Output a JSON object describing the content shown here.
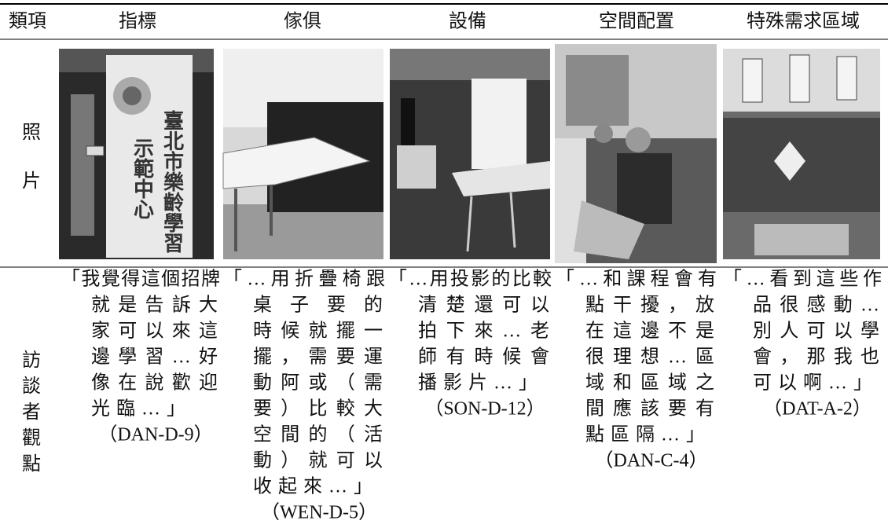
{
  "table": {
    "header": [
      "類項",
      "指標",
      "傢俱",
      "設備",
      "空間配置",
      "特殊需求區域"
    ],
    "rows": [
      {
        "label": "照片",
        "photos": [
          {
            "sign": [
              "臺北市樂齡學習",
              "示範中心"
            ]
          }
        ]
      },
      {
        "label": "訪談者觀點",
        "cells": [
          [
            "「我覺得這個招牌",
            "就是告訴大",
            "家可以來這",
            "邊學習…好",
            "像在說歡迎",
            "光臨…」",
            "（DAN-D-9）"
          ],
          [
            "「…用折疊椅跟",
            "桌子要的",
            "時候就擺一",
            "擺，需要運",
            "動阿或（需",
            "要）比較大",
            "空間的（活",
            "動）就可以",
            "收起來…」",
            "（WEN-D-5）"
          ],
          [
            "「…用投影的比較",
            "清楚還可以",
            "拍下來…老",
            "師有時候會",
            "播影片…」",
            "（SON-D-12）"
          ],
          [
            "「…和課程會有",
            "點干擾，放",
            "在這邊不是",
            "很理想…區",
            "域和區域之",
            "間應該要有",
            "點區隔…」",
            "（DAN-C-4）"
          ],
          [
            "「…看到這些作",
            "品很感動…",
            "別人可以學",
            "會，那我也",
            "可以啊…」",
            "（DAT-A-2）"
          ]
        ]
      }
    ]
  }
}
